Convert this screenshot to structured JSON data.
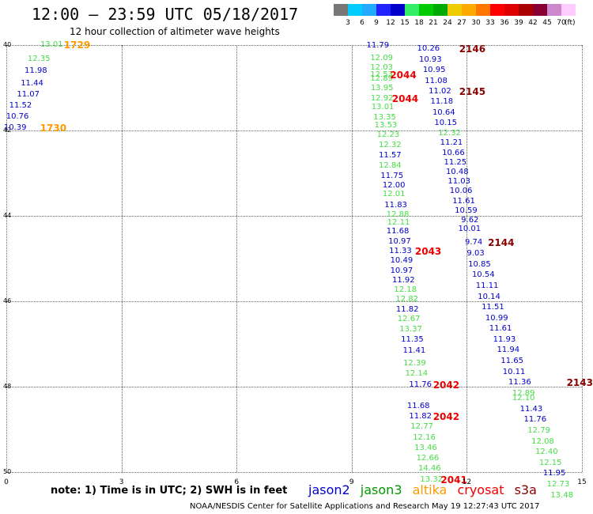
{
  "header": {
    "title": "12:00 — 23:59 UTC 05/18/2017",
    "subtitle": "12 hour collection of altimeter wave heights"
  },
  "color_scale": {
    "colors": [
      "#777777",
      "#00ccff",
      "#22aaff",
      "#2222ff",
      "#0000cc",
      "#33ee66",
      "#00cc00",
      "#00aa00",
      "#eecc00",
      "#ffaa00",
      "#ff7700",
      "#ff0000",
      "#dd0000",
      "#aa0000",
      "#880033",
      "#cc88cc",
      "#ffccff"
    ],
    "labels": [
      "3",
      "6",
      "9",
      "12",
      "15",
      "18",
      "21",
      "24",
      "27",
      "30",
      "33",
      "36",
      "39",
      "42",
      "45",
      "70"
    ],
    "unit": "(ft)"
  },
  "axes": {
    "y_ticks": [
      "40",
      "42",
      "44",
      "46",
      "48",
      "50"
    ],
    "x_ticks": [
      "0",
      "3",
      "6",
      "9",
      "12",
      "15"
    ]
  },
  "observations": [
    {
      "lon": 1.18,
      "lat": 40.0,
      "v": "13.01",
      "c": "#44dd44"
    },
    {
      "lon": 0.85,
      "lat": 40.33,
      "v": "12.35",
      "c": "#44dd44"
    },
    {
      "lon": 0.77,
      "lat": 40.62,
      "v": "11.98",
      "c": "#0000cc"
    },
    {
      "lon": 0.67,
      "lat": 40.91,
      "v": "11.44",
      "c": "#0000cc"
    },
    {
      "lon": 0.57,
      "lat": 41.16,
      "v": "11.07",
      "c": "#0000cc"
    },
    {
      "lon": 0.37,
      "lat": 41.42,
      "v": "11.52",
      "c": "#0000cc"
    },
    {
      "lon": 0.29,
      "lat": 41.68,
      "v": "10.76",
      "c": "#0000cc"
    },
    {
      "lon": 0.23,
      "lat": 41.94,
      "v": "10.39",
      "c": "#0000cc"
    },
    {
      "lon": 9.68,
      "lat": 40.02,
      "v": "11.79",
      "c": "#0000cc"
    },
    {
      "lon": 9.78,
      "lat": 40.31,
      "v": "12.09",
      "c": "#44dd44"
    },
    {
      "lon": 9.78,
      "lat": 40.54,
      "v": "12.03",
      "c": "#44dd44"
    },
    {
      "lon": 9.78,
      "lat": 40.71,
      "v": "12.53",
      "c": "#44dd44"
    },
    {
      "lon": 9.78,
      "lat": 40.79,
      "v": "12.89",
      "c": "#44dd44"
    },
    {
      "lon": 9.79,
      "lat": 41.02,
      "v": "13.95",
      "c": "#44dd44"
    },
    {
      "lon": 9.79,
      "lat": 41.26,
      "v": "12.92",
      "c": "#44dd44"
    },
    {
      "lon": 9.81,
      "lat": 41.46,
      "v": "13.01",
      "c": "#44dd44"
    },
    {
      "lon": 9.86,
      "lat": 41.7,
      "v": "13.35",
      "c": "#44dd44"
    },
    {
      "lon": 9.89,
      "lat": 41.89,
      "v": "13.53",
      "c": "#44dd44"
    },
    {
      "lon": 9.95,
      "lat": 42.11,
      "v": "12.23",
      "c": "#44dd44"
    },
    {
      "lon": 10.0,
      "lat": 42.35,
      "v": "12.32",
      "c": "#44dd44"
    },
    {
      "lon": 10.0,
      "lat": 42.59,
      "v": "11.57",
      "c": "#0000cc"
    },
    {
      "lon": 10.0,
      "lat": 42.83,
      "v": "12.84",
      "c": "#44dd44"
    },
    {
      "lon": 10.05,
      "lat": 43.07,
      "v": "11.75",
      "c": "#0000cc"
    },
    {
      "lon": 10.1,
      "lat": 43.3,
      "v": "12.00",
      "c": "#0000cc"
    },
    {
      "lon": 10.1,
      "lat": 43.5,
      "v": "12.01",
      "c": "#44dd44"
    },
    {
      "lon": 10.15,
      "lat": 43.76,
      "v": "11.83",
      "c": "#0000cc"
    },
    {
      "lon": 10.2,
      "lat": 43.98,
      "v": "12.88",
      "c": "#44dd44"
    },
    {
      "lon": 10.22,
      "lat": 44.16,
      "v": "12.11",
      "c": "#44dd44"
    },
    {
      "lon": 10.2,
      "lat": 44.37,
      "v": "11.68",
      "c": "#0000cc"
    },
    {
      "lon": 10.25,
      "lat": 44.61,
      "v": "10.97",
      "c": "#0000cc"
    },
    {
      "lon": 10.27,
      "lat": 44.83,
      "v": "11.33",
      "c": "#0000cc"
    },
    {
      "lon": 10.3,
      "lat": 45.06,
      "v": "10.49",
      "c": "#0000cc"
    },
    {
      "lon": 10.3,
      "lat": 45.29,
      "v": "10.97",
      "c": "#0000cc"
    },
    {
      "lon": 10.35,
      "lat": 45.51,
      "v": "11.92",
      "c": "#0000cc"
    },
    {
      "lon": 10.4,
      "lat": 45.74,
      "v": "12.18",
      "c": "#44dd44"
    },
    {
      "lon": 10.44,
      "lat": 45.97,
      "v": "12.82",
      "c": "#44dd44"
    },
    {
      "lon": 10.45,
      "lat": 46.2,
      "v": "11.82",
      "c": "#0000cc"
    },
    {
      "lon": 10.49,
      "lat": 46.43,
      "v": "12.67",
      "c": "#44dd44"
    },
    {
      "lon": 10.54,
      "lat": 46.66,
      "v": "13.37",
      "c": "#44dd44"
    },
    {
      "lon": 10.58,
      "lat": 46.91,
      "v": "11.35",
      "c": "#0000cc"
    },
    {
      "lon": 10.63,
      "lat": 47.17,
      "v": "11.41",
      "c": "#0000cc"
    },
    {
      "lon": 10.64,
      "lat": 47.46,
      "v": "12.39",
      "c": "#44dd44"
    },
    {
      "lon": 10.69,
      "lat": 47.71,
      "v": "12.14",
      "c": "#44dd44"
    },
    {
      "lon": 10.79,
      "lat": 47.96,
      "v": "11.76",
      "c": "#0000cc"
    },
    {
      "lon": 10.74,
      "lat": 48.46,
      "v": "11.68",
      "c": "#0000cc"
    },
    {
      "lon": 10.79,
      "lat": 48.7,
      "v": "11.82",
      "c": "#0000cc"
    },
    {
      "lon": 10.83,
      "lat": 48.94,
      "v": "12.77",
      "c": "#44dd44"
    },
    {
      "lon": 10.89,
      "lat": 49.2,
      "v": "12.16",
      "c": "#44dd44"
    },
    {
      "lon": 10.93,
      "lat": 49.44,
      "v": "13.46",
      "c": "#44dd44"
    },
    {
      "lon": 10.98,
      "lat": 49.69,
      "v": "12.66",
      "c": "#44dd44"
    },
    {
      "lon": 11.03,
      "lat": 49.93,
      "v": "14.46",
      "c": "#44dd44"
    },
    {
      "lon": 11.08,
      "lat": 50.18,
      "v": "13.32",
      "c": "#44dd44"
    },
    {
      "lon": 11.0,
      "lat": 40.09,
      "v": "10.26",
      "c": "#0000cc"
    },
    {
      "lon": 11.05,
      "lat": 40.35,
      "v": "10.93",
      "c": "#0000cc"
    },
    {
      "lon": 11.15,
      "lat": 40.6,
      "v": "10.95",
      "c": "#0000cc"
    },
    {
      "lon": 11.2,
      "lat": 40.85,
      "v": "11.08",
      "c": "#0000cc"
    },
    {
      "lon": 11.3,
      "lat": 41.09,
      "v": "11.02",
      "c": "#0000cc"
    },
    {
      "lon": 11.35,
      "lat": 41.34,
      "v": "11.18",
      "c": "#0000cc"
    },
    {
      "lon": 11.4,
      "lat": 41.59,
      "v": "10.64",
      "c": "#0000cc"
    },
    {
      "lon": 11.45,
      "lat": 41.84,
      "v": "10.15",
      "c": "#0000cc"
    },
    {
      "lon": 11.55,
      "lat": 42.08,
      "v": "12.32",
      "c": "#44dd44"
    },
    {
      "lon": 11.6,
      "lat": 42.3,
      "v": "11.21",
      "c": "#0000cc"
    },
    {
      "lon": 11.65,
      "lat": 42.53,
      "v": "10.66",
      "c": "#0000cc"
    },
    {
      "lon": 11.7,
      "lat": 42.75,
      "v": "11.25",
      "c": "#0000cc"
    },
    {
      "lon": 11.75,
      "lat": 42.98,
      "v": "10.48",
      "c": "#0000cc"
    },
    {
      "lon": 11.8,
      "lat": 43.2,
      "v": "11.03",
      "c": "#0000cc"
    },
    {
      "lon": 11.85,
      "lat": 43.43,
      "v": "10.06",
      "c": "#0000cc"
    },
    {
      "lon": 11.92,
      "lat": 43.66,
      "v": "11.61",
      "c": "#0000cc"
    },
    {
      "lon": 11.98,
      "lat": 43.89,
      "v": "10.59",
      "c": "#0000cc"
    },
    {
      "lon": 12.08,
      "lat": 44.12,
      "v": "9.62",
      "c": "#0000cc"
    },
    {
      "lon": 12.07,
      "lat": 44.32,
      "v": "10.01",
      "c": "#0000cc"
    },
    {
      "lon": 12.18,
      "lat": 44.63,
      "v": "9.74",
      "c": "#0000cc"
    },
    {
      "lon": 12.23,
      "lat": 44.89,
      "v": "9.03",
      "c": "#0000cc"
    },
    {
      "lon": 12.33,
      "lat": 45.14,
      "v": "10.85",
      "c": "#0000cc"
    },
    {
      "lon": 12.43,
      "lat": 45.39,
      "v": "10.54",
      "c": "#0000cc"
    },
    {
      "lon": 12.53,
      "lat": 45.64,
      "v": "11.11",
      "c": "#0000cc"
    },
    {
      "lon": 12.58,
      "lat": 45.9,
      "v": "10.14",
      "c": "#0000cc"
    },
    {
      "lon": 12.68,
      "lat": 46.15,
      "v": "11.51",
      "c": "#0000cc"
    },
    {
      "lon": 12.78,
      "lat": 46.4,
      "v": "10.99",
      "c": "#0000cc"
    },
    {
      "lon": 12.88,
      "lat": 46.65,
      "v": "11.61",
      "c": "#0000cc"
    },
    {
      "lon": 12.98,
      "lat": 46.9,
      "v": "11.93",
      "c": "#0000cc"
    },
    {
      "lon": 13.08,
      "lat": 47.15,
      "v": "11.94",
      "c": "#0000cc"
    },
    {
      "lon": 13.18,
      "lat": 47.41,
      "v": "11.65",
      "c": "#0000cc"
    },
    {
      "lon": 13.23,
      "lat": 47.66,
      "v": "10.11",
      "c": "#0000cc"
    },
    {
      "lon": 13.38,
      "lat": 47.91,
      "v": "11.36",
      "c": "#0000cc"
    },
    {
      "lon": 13.48,
      "lat": 48.16,
      "v": "12.89",
      "c": "#44dd44"
    },
    {
      "lon": 13.48,
      "lat": 48.28,
      "v": "12.10",
      "c": "#44dd44"
    },
    {
      "lon": 13.68,
      "lat": 48.53,
      "v": "11.43",
      "c": "#0000cc"
    },
    {
      "lon": 13.78,
      "lat": 48.78,
      "v": "11.76",
      "c": "#0000cc"
    },
    {
      "lon": 13.88,
      "lat": 49.03,
      "v": "12.79",
      "c": "#44dd44"
    },
    {
      "lon": 13.98,
      "lat": 49.29,
      "v": "12.08",
      "c": "#44dd44"
    },
    {
      "lon": 14.08,
      "lat": 49.54,
      "v": "12.40",
      "c": "#44dd44"
    },
    {
      "lon": 14.18,
      "lat": 49.79,
      "v": "12.15",
      "c": "#44dd44"
    },
    {
      "lon": 14.28,
      "lat": 50.04,
      "v": "11.95",
      "c": "#0000cc"
    },
    {
      "lon": 14.38,
      "lat": 50.3,
      "v": "12.73",
      "c": "#44dd44"
    },
    {
      "lon": 14.48,
      "lat": 50.55,
      "v": "13.48",
      "c": "#44dd44"
    }
  ],
  "time_labels": [
    {
      "lon": 1.5,
      "lat": 40.0,
      "t": "1729",
      "c": "#ff9900"
    },
    {
      "lon": 0.88,
      "lat": 41.94,
      "t": "1730",
      "c": "#ff9900"
    },
    {
      "lon": 11.8,
      "lat": 40.09,
      "t": "2146",
      "c": "#880000"
    },
    {
      "lon": 10.0,
      "lat": 40.71,
      "t": "2044",
      "c": "#ee0000"
    },
    {
      "lon": 11.8,
      "lat": 41.09,
      "t": "2145",
      "c": "#880000"
    },
    {
      "lon": 10.05,
      "lat": 41.26,
      "t": "2044",
      "c": "#ee0000"
    },
    {
      "lon": 12.55,
      "lat": 44.63,
      "t": "2144",
      "c": "#880000"
    },
    {
      "lon": 10.65,
      "lat": 44.83,
      "t": "2043",
      "c": "#ee0000"
    },
    {
      "lon": 11.12,
      "lat": 47.96,
      "t": "2042",
      "c": "#ee0000"
    },
    {
      "lon": 14.6,
      "lat": 47.91,
      "t": "2143",
      "c": "#880000"
    },
    {
      "lon": 11.12,
      "lat": 48.7,
      "t": "2042",
      "c": "#ee0000"
    },
    {
      "lon": 11.32,
      "lat": 50.18,
      "t": "2041",
      "c": "#ee0000"
    }
  ],
  "note": "note: 1) Time is in UTC; 2) SWH is in feet",
  "legend": [
    {
      "label": "jason2",
      "color": "#0000cc"
    },
    {
      "label": "jason3",
      "color": "#009900"
    },
    {
      "label": "altika",
      "color": "#ff9900"
    },
    {
      "label": "cryosat",
      "color": "#ee0000"
    },
    {
      "label": "s3a",
      "color": "#880000"
    }
  ],
  "footer": "NOAA/NESDIS Center for Satellite Applications and Research    May 19 12:27:43 UTC 2017"
}
